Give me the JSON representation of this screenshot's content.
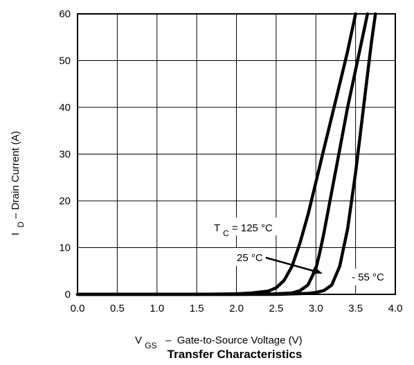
{
  "chart_data": {
    "type": "line",
    "title": "Transfer Characteristics",
    "xlabel": {
      "main": "V",
      "sub": "GS",
      "rest": "  –  Gate-to-Source Voltage (V)"
    },
    "ylabel": {
      "main": "I",
      "sub": "D",
      "rest": " – Drain Current (A)"
    },
    "xlim": [
      0.0,
      4.0
    ],
    "ylim": [
      0,
      60
    ],
    "xticks": [
      "0.0",
      "0.5",
      "1.0",
      "1.5",
      "2.0",
      "2.5",
      "3.0",
      "3.5",
      "4.0"
    ],
    "yticks": [
      "0",
      "10",
      "20",
      "30",
      "40",
      "50",
      "60"
    ],
    "grid": true,
    "series": [
      {
        "name": "T_C = 125 °C",
        "x": [
          0.0,
          1.5,
          2.0,
          2.2,
          2.4,
          2.5,
          2.6,
          2.7,
          2.8,
          2.9,
          3.0,
          3.1,
          3.2,
          3.3,
          3.4,
          3.5
        ],
        "y": [
          0,
          0,
          0.1,
          0.3,
          0.7,
          1.4,
          3.0,
          6.0,
          11.0,
          17.0,
          24.0,
          31.0,
          38.0,
          45.0,
          52.0,
          60.0
        ]
      },
      {
        "name": "25 °C",
        "x": [
          0.0,
          2.0,
          2.5,
          2.7,
          2.8,
          2.9,
          3.0,
          3.05,
          3.1,
          3.2,
          3.3,
          3.4,
          3.5,
          3.6,
          3.65
        ],
        "y": [
          0,
          0,
          0.1,
          0.3,
          0.8,
          2.0,
          5.5,
          9.0,
          13.0,
          22.0,
          31.0,
          40.0,
          48.0,
          56.0,
          60.0
        ]
      },
      {
        "name": "- 55 °C",
        "x": [
          0.0,
          2.5,
          2.9,
          3.0,
          3.1,
          3.2,
          3.3,
          3.4,
          3.5,
          3.55,
          3.6,
          3.65,
          3.7,
          3.75
        ],
        "y": [
          0,
          0,
          0.2,
          0.4,
          0.8,
          2.0,
          6.0,
          14.0,
          26.0,
          33.0,
          40.0,
          47.0,
          54.0,
          60.0
        ]
      }
    ],
    "annotations": {
      "tc_label": {
        "main": "T",
        "sub": "C",
        "rest": " = 125 °C"
      },
      "label_25": "25 °C",
      "label_m55": "- 55 °C"
    }
  }
}
